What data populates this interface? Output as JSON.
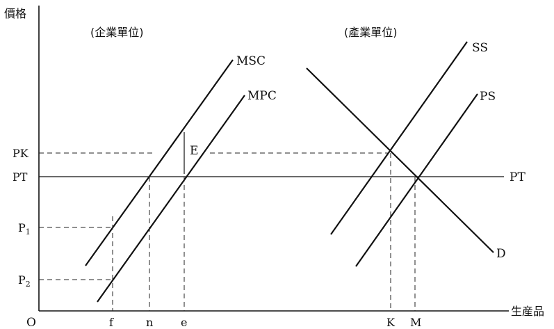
{
  "axes": {
    "y_label": "價格",
    "x_label": "生産品",
    "origin": "O"
  },
  "panels": {
    "firm_title": "(企業單位)",
    "industry_title": "(產業單位)"
  },
  "curves": {
    "msc": "MSC",
    "mpc": "MPC",
    "ss": "SS",
    "ps": "PS",
    "d": "D",
    "pt_line": "PT"
  },
  "y_ticks": {
    "pk": "PK",
    "pt": "PT",
    "p1": "P",
    "p1_sub": "1",
    "p2": "P",
    "p2_sub": "2"
  },
  "x_ticks": {
    "f": "f",
    "n": "n",
    "e": "e",
    "k": "K",
    "m": "M"
  },
  "annotations": {
    "e_gap": "E"
  }
}
